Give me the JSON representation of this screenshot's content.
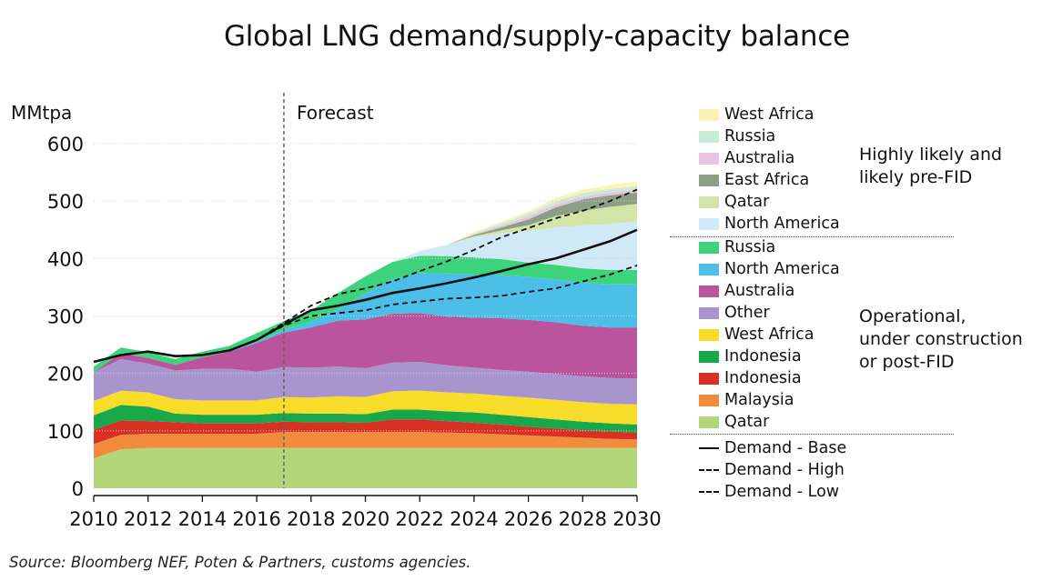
{
  "chart_data": {
    "type": "area",
    "title": "Global LNG demand/supply-capacity balance",
    "ylabel": "MMtpa",
    "ylim": [
      0,
      600
    ],
    "yticks": [
      0,
      100,
      200,
      300,
      400,
      500,
      600
    ],
    "xlim": [
      2010,
      2030
    ],
    "xticks": [
      2010,
      2012,
      2014,
      2016,
      2018,
      2020,
      2022,
      2024,
      2026,
      2028,
      2030
    ],
    "forecast_start": 2017,
    "forecast_label": "Forecast",
    "x": [
      2010,
      2011,
      2012,
      2013,
      2014,
      2015,
      2016,
      2017,
      2018,
      2019,
      2020,
      2021,
      2022,
      2023,
      2024,
      2025,
      2026,
      2027,
      2028,
      2029,
      2030
    ],
    "series": [
      {
        "name": "Qatar",
        "group": "operational",
        "color": "#b3d67a",
        "values": [
          52,
          68,
          70,
          70,
          70,
          70,
          70,
          70,
          70,
          70,
          70,
          70,
          70,
          70,
          70,
          70,
          70,
          70,
          70,
          70,
          70
        ]
      },
      {
        "name": "Malaysia",
        "group": "operational",
        "color": "#f08c3c",
        "values": [
          25,
          25,
          25,
          25,
          25,
          25,
          25,
          28,
          28,
          28,
          28,
          28,
          28,
          27,
          26,
          24,
          22,
          20,
          18,
          16,
          15
        ]
      },
      {
        "name": "Indonesia",
        "group": "operational",
        "color": "#d93025",
        "values": [
          25,
          25,
          22,
          20,
          18,
          18,
          18,
          18,
          17,
          17,
          16,
          22,
          22,
          20,
          18,
          17,
          15,
          14,
          13,
          13,
          12
        ]
      },
      {
        "name": "Indonesia",
        "group": "operational",
        "color": "#18a84a",
        "values": [
          25,
          27,
          25,
          15,
          15,
          15,
          15,
          15,
          15,
          15,
          15,
          17,
          17,
          17,
          18,
          17,
          17,
          16,
          15,
          14,
          14
        ]
      },
      {
        "name": "West Africa",
        "group": "operational",
        "color": "#f8dc2a",
        "values": [
          25,
          25,
          25,
          25,
          25,
          25,
          25,
          28,
          28,
          30,
          30,
          32,
          33,
          33,
          33,
          33,
          34,
          34,
          34,
          34,
          35
        ]
      },
      {
        "name": "Other",
        "group": "operational",
        "color": "#a995ce",
        "values": [
          50,
          55,
          50,
          50,
          55,
          55,
          50,
          52,
          52,
          52,
          50,
          50,
          50,
          47,
          45,
          45,
          45,
          45,
          45,
          45,
          45
        ]
      },
      {
        "name": "Australia",
        "group": "operational",
        "color": "#b9549d",
        "values": [
          0,
          10,
          10,
          10,
          20,
          30,
          50,
          60,
          70,
          80,
          85,
          85,
          85,
          85,
          87,
          90,
          90,
          90,
          88,
          88,
          89
        ]
      },
      {
        "name": "North America",
        "group": "operational",
        "color": "#4bbfe8",
        "values": [
          0,
          0,
          0,
          0,
          0,
          0,
          2,
          5,
          10,
          20,
          45,
          60,
          70,
          75,
          75,
          75,
          75,
          75,
          75,
          75,
          75
        ]
      },
      {
        "name": "Russia",
        "group": "operational",
        "color": "#3dd37c",
        "values": [
          10,
          10,
          10,
          10,
          10,
          10,
          15,
          15,
          20,
          28,
          30,
          30,
          30,
          30,
          30,
          28,
          25,
          25,
          25,
          25,
          25
        ]
      },
      {
        "name": "North America",
        "group": "pre-FID",
        "color": "#cfeaf6",
        "values": [
          0,
          0,
          0,
          0,
          0,
          0,
          0,
          0,
          0,
          0,
          0,
          0,
          8,
          20,
          35,
          45,
          55,
          65,
          75,
          80,
          85
        ]
      },
      {
        "name": "Qatar",
        "group": "pre-FID",
        "color": "#d2e4a8",
        "values": [
          0,
          0,
          0,
          0,
          0,
          0,
          0,
          0,
          0,
          0,
          0,
          0,
          0,
          0,
          2,
          5,
          10,
          20,
          25,
          30,
          30
        ]
      },
      {
        "name": "East Africa",
        "group": "pre-FID",
        "color": "#8c9e84",
        "values": [
          0,
          0,
          0,
          0,
          0,
          0,
          0,
          0,
          0,
          0,
          0,
          0,
          0,
          0,
          2,
          5,
          10,
          15,
          20,
          20,
          20
        ]
      },
      {
        "name": "Australia",
        "group": "pre-FID",
        "color": "#e7c4e2",
        "values": [
          0,
          0,
          0,
          0,
          0,
          0,
          0,
          0,
          0,
          0,
          0,
          0,
          0,
          0,
          1,
          3,
          5,
          5,
          5,
          5,
          5
        ]
      },
      {
        "name": "Russia",
        "group": "pre-FID",
        "color": "#c8ecd8",
        "values": [
          0,
          0,
          0,
          0,
          0,
          0,
          0,
          0,
          0,
          0,
          0,
          0,
          0,
          0,
          2,
          4,
          5,
          6,
          6,
          6,
          6
        ]
      },
      {
        "name": "West Africa",
        "group": "pre-FID",
        "color": "#fbf2b6",
        "values": [
          0,
          0,
          0,
          0,
          0,
          0,
          0,
          0,
          0,
          0,
          0,
          0,
          0,
          0,
          2,
          3,
          4,
          5,
          6,
          7,
          8
        ]
      }
    ],
    "lines": [
      {
        "name": "Demand - Base",
        "dash": "solid",
        "values": [
          220,
          232,
          238,
          230,
          232,
          240,
          258,
          285,
          310,
          318,
          328,
          340,
          348,
          357,
          367,
          378,
          390,
          400,
          415,
          430,
          450
        ]
      },
      {
        "name": "Demand - High",
        "dash": "dashed",
        "values": [
          220,
          232,
          238,
          230,
          232,
          240,
          258,
          288,
          318,
          338,
          348,
          360,
          378,
          395,
          415,
          437,
          453,
          470,
          483,
          500,
          520
        ]
      },
      {
        "name": "Demand - Low",
        "dash": "dashed",
        "values": [
          220,
          232,
          238,
          230,
          232,
          240,
          258,
          283,
          300,
          305,
          310,
          320,
          325,
          330,
          332,
          335,
          342,
          348,
          360,
          372,
          388
        ]
      }
    ],
    "legend_groups": [
      {
        "label": "Highly likely and likely pre-FID",
        "items": [
          "West Africa",
          "Russia",
          "Australia",
          "East Africa",
          "Qatar",
          "North America"
        ]
      },
      {
        "label": "Operational, under construction or post-FID",
        "items": [
          "Russia",
          "North America",
          "Australia",
          "Other",
          "West Africa",
          "Indonesia",
          "Indonesia",
          "Malaysia",
          "Qatar"
        ]
      }
    ]
  },
  "legend": {
    "prefid_items": [
      {
        "label": "West Africa",
        "color": "#fbf2b6"
      },
      {
        "label": "Russia",
        "color": "#c8ecd8"
      },
      {
        "label": "Australia",
        "color": "#e7c4e2"
      },
      {
        "label": "East Africa",
        "color": "#8c9e84"
      },
      {
        "label": "Qatar",
        "color": "#d2e4a8"
      },
      {
        "label": "North America",
        "color": "#cfeaf6"
      }
    ],
    "operational_items": [
      {
        "label": "Russia",
        "color": "#3dd37c"
      },
      {
        "label": "North America",
        "color": "#4bbfe8"
      },
      {
        "label": "Australia",
        "color": "#b9549d"
      },
      {
        "label": "Other",
        "color": "#a995ce"
      },
      {
        "label": "West Africa",
        "color": "#f8dc2a"
      },
      {
        "label": "Indonesia",
        "color": "#18a84a"
      },
      {
        "label": "Indonesia",
        "color": "#d93025"
      },
      {
        "label": "Malaysia",
        "color": "#f08c3c"
      },
      {
        "label": "Qatar",
        "color": "#b3d67a"
      }
    ],
    "line_items": [
      {
        "label": "Demand - Base",
        "style": "solid"
      },
      {
        "label": "Demand - High",
        "style": "dashed"
      },
      {
        "label": "Demand - Low",
        "style": "dashed"
      }
    ],
    "prefid_group_label": "Highly likely and\nlikely pre-FID",
    "operational_group_label": "Operational,\nunder construction\nor post-FID"
  },
  "source": "Source: Bloomberg NEF, Poten & Partners, customs agencies."
}
